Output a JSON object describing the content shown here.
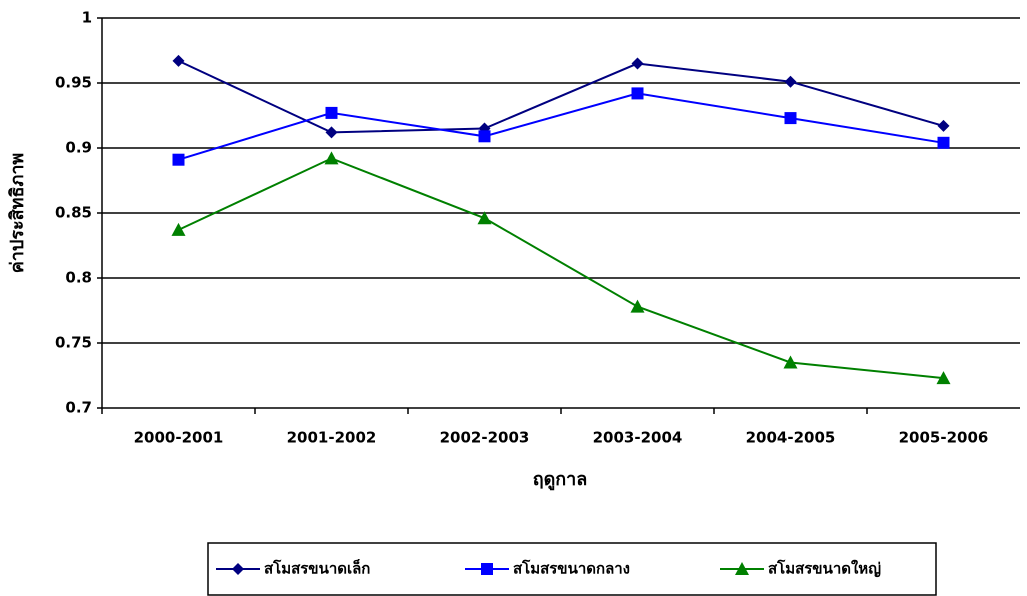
{
  "chart_data": {
    "type": "line",
    "x_label": "ฤดูกาล",
    "y_label": "ค่าประสิทธิภาพ",
    "categories": [
      "2000-2001",
      "2001-2002",
      "2002-2003",
      "2003-2004",
      "2004-2005",
      "2005-2006"
    ],
    "series": [
      {
        "name": "สโมสรขนาดเล็ก",
        "color": "#000080",
        "marker": "diamond",
        "values": [
          0.967,
          0.912,
          0.915,
          0.965,
          0.951,
          0.917
        ]
      },
      {
        "name": "สโมสรขนาดกลาง",
        "color": "#0000ff",
        "marker": "square",
        "values": [
          0.891,
          0.927,
          0.909,
          0.942,
          0.923,
          0.904
        ]
      },
      {
        "name": "สโมสรขนาดใหญ่",
        "color": "#008000",
        "marker": "triangle",
        "values": [
          0.837,
          0.892,
          0.846,
          0.778,
          0.735,
          0.723
        ]
      }
    ],
    "ylim": [
      0.7,
      1
    ],
    "yticks": [
      0.7,
      0.75,
      0.8,
      0.85,
      0.9,
      0.95,
      1
    ],
    "grid": true,
    "legend": "bottom"
  }
}
